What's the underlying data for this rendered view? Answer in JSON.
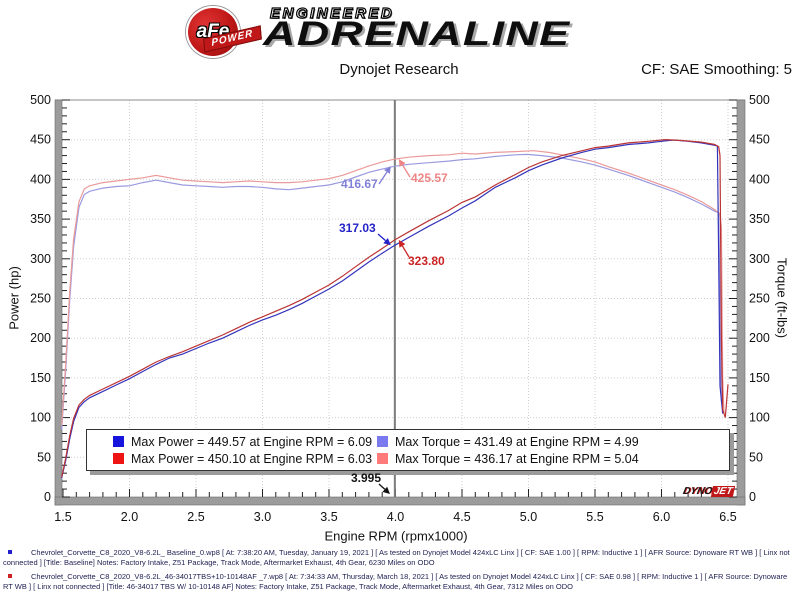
{
  "header": {
    "logo": {
      "afe": "aFe",
      "power": "POWER",
      "engineered": "ENGINEERED",
      "adrenaline": "ADRENALINE"
    },
    "title": "Dynojet Research",
    "cf_smoothing": "CF: SAE Smoothing: 5"
  },
  "watermark": {
    "dyno": "DYNO",
    "jet": "JET"
  },
  "chart_data": {
    "type": "line",
    "xlabel": "Engine RPM (rpmx1000)",
    "ylabel_left": "Power (hp)",
    "ylabel_right": "Torque (ft-lbs)",
    "xlim": [
      1.5,
      6.5
    ],
    "ylim": [
      0,
      500
    ],
    "x_tick_labels": [
      "1.5",
      "2.0",
      "2.5",
      "3.0",
      "3.5",
      "4.0",
      "4.5",
      "5.0",
      "5.5",
      "6.0",
      "6.5"
    ],
    "y_tick_labels": [
      "0",
      "50",
      "100",
      "150",
      "200",
      "250",
      "300",
      "350",
      "400",
      "450",
      "500"
    ],
    "grid": "dotted",
    "legend_position": "bottom-inside",
    "cursor_rpm": 3.995,
    "series": [
      {
        "name": "torque-baseline",
        "color": "#9a9ae0",
        "points": [
          [
            1.49,
            85
          ],
          [
            1.52,
            160
          ],
          [
            1.55,
            248
          ],
          [
            1.58,
            315
          ],
          [
            1.62,
            365
          ],
          [
            1.66,
            381
          ],
          [
            1.7,
            385
          ],
          [
            1.8,
            389
          ],
          [
            1.9,
            391
          ],
          [
            2.0,
            392
          ],
          [
            2.1,
            396
          ],
          [
            2.2,
            399
          ],
          [
            2.3,
            396
          ],
          [
            2.4,
            393
          ],
          [
            2.5,
            392
          ],
          [
            2.6,
            391
          ],
          [
            2.7,
            390
          ],
          [
            2.8,
            391
          ],
          [
            2.9,
            391
          ],
          [
            3.0,
            390
          ],
          [
            3.1,
            388
          ],
          [
            3.2,
            387
          ],
          [
            3.3,
            389
          ],
          [
            3.4,
            391
          ],
          [
            3.5,
            393
          ],
          [
            3.6,
            397
          ],
          [
            3.7,
            403
          ],
          [
            3.8,
            409
          ],
          [
            3.9,
            413
          ],
          [
            3.995,
            416.67
          ],
          [
            4.1,
            419
          ],
          [
            4.25,
            421
          ],
          [
            4.4,
            423
          ],
          [
            4.5,
            425
          ],
          [
            4.6,
            426
          ],
          [
            4.75,
            429
          ],
          [
            4.9,
            431
          ],
          [
            4.99,
            431.49
          ],
          [
            5.1,
            430
          ],
          [
            5.25,
            427
          ],
          [
            5.4,
            422
          ],
          [
            5.5,
            418
          ],
          [
            5.6,
            413
          ],
          [
            5.75,
            405
          ],
          [
            5.9,
            396
          ],
          [
            6.0,
            390
          ],
          [
            6.1,
            384
          ],
          [
            6.2,
            377
          ],
          [
            6.3,
            369
          ],
          [
            6.4,
            360
          ],
          [
            6.43,
            358
          ],
          [
            6.44,
            250
          ],
          [
            6.45,
            120
          ]
        ]
      },
      {
        "name": "torque-tuned",
        "color": "#eb9a9a",
        "points": [
          [
            1.49,
            90
          ],
          [
            1.52,
            168
          ],
          [
            1.55,
            258
          ],
          [
            1.58,
            325
          ],
          [
            1.62,
            372
          ],
          [
            1.66,
            388
          ],
          [
            1.7,
            392
          ],
          [
            1.8,
            396
          ],
          [
            1.9,
            398
          ],
          [
            2.0,
            400
          ],
          [
            2.1,
            402
          ],
          [
            2.2,
            405
          ],
          [
            2.3,
            402
          ],
          [
            2.4,
            399
          ],
          [
            2.5,
            398
          ],
          [
            2.6,
            397
          ],
          [
            2.7,
            396
          ],
          [
            2.8,
            397
          ],
          [
            2.9,
            398
          ],
          [
            3.0,
            397
          ],
          [
            3.1,
            396
          ],
          [
            3.2,
            396
          ],
          [
            3.3,
            397
          ],
          [
            3.4,
            399
          ],
          [
            3.5,
            401
          ],
          [
            3.6,
            405
          ],
          [
            3.7,
            411
          ],
          [
            3.8,
            417
          ],
          [
            3.9,
            422
          ],
          [
            3.995,
            425.57
          ],
          [
            4.1,
            428
          ],
          [
            4.25,
            430
          ],
          [
            4.4,
            431
          ],
          [
            4.5,
            433
          ],
          [
            4.6,
            432
          ],
          [
            4.75,
            434
          ],
          [
            4.9,
            435
          ],
          [
            5.04,
            436.17
          ],
          [
            5.15,
            434
          ],
          [
            5.25,
            431
          ],
          [
            5.4,
            426
          ],
          [
            5.5,
            422
          ],
          [
            5.6,
            416
          ],
          [
            5.75,
            408
          ],
          [
            5.9,
            399
          ],
          [
            6.0,
            393
          ],
          [
            6.1,
            387
          ],
          [
            6.2,
            380
          ],
          [
            6.3,
            372
          ],
          [
            6.4,
            362
          ],
          [
            6.44,
            356
          ],
          [
            6.45,
            340
          ],
          [
            6.46,
            150
          ],
          [
            6.47,
            105
          ]
        ]
      },
      {
        "name": "power-baseline",
        "color": "#3434bb",
        "points": [
          [
            1.49,
            24
          ],
          [
            1.52,
            46
          ],
          [
            1.55,
            73
          ],
          [
            1.58,
            95
          ],
          [
            1.62,
            113
          ],
          [
            1.66,
            120
          ],
          [
            1.7,
            125
          ],
          [
            1.8,
            133
          ],
          [
            1.9,
            141
          ],
          [
            2.0,
            149
          ],
          [
            2.1,
            158
          ],
          [
            2.2,
            167
          ],
          [
            2.3,
            175
          ],
          [
            2.4,
            180
          ],
          [
            2.5,
            187
          ],
          [
            2.6,
            194
          ],
          [
            2.7,
            200
          ],
          [
            2.8,
            208
          ],
          [
            2.9,
            216
          ],
          [
            3.0,
            223
          ],
          [
            3.1,
            229
          ],
          [
            3.2,
            236
          ],
          [
            3.3,
            244
          ],
          [
            3.4,
            253
          ],
          [
            3.5,
            262
          ],
          [
            3.6,
            272
          ],
          [
            3.7,
            284
          ],
          [
            3.8,
            296
          ],
          [
            3.9,
            307
          ],
          [
            3.995,
            317.03
          ],
          [
            4.1,
            327
          ],
          [
            4.25,
            341
          ],
          [
            4.4,
            354
          ],
          [
            4.5,
            364
          ],
          [
            4.6,
            373
          ],
          [
            4.75,
            390
          ],
          [
            4.9,
            402
          ],
          [
            5.0,
            411
          ],
          [
            5.1,
            418
          ],
          [
            5.25,
            427
          ],
          [
            5.4,
            434
          ],
          [
            5.5,
            438
          ],
          [
            5.6,
            440
          ],
          [
            5.75,
            444
          ],
          [
            5.9,
            446
          ],
          [
            6.0,
            448
          ],
          [
            6.09,
            449.57
          ],
          [
            6.2,
            448
          ],
          [
            6.3,
            446
          ],
          [
            6.4,
            443
          ],
          [
            6.42,
            442
          ],
          [
            6.43,
            300
          ],
          [
            6.44,
            140
          ],
          [
            6.46,
            105
          ]
        ]
      },
      {
        "name": "power-tuned",
        "color": "#bb3434",
        "points": [
          [
            1.49,
            25
          ],
          [
            1.52,
            49
          ],
          [
            1.55,
            77
          ],
          [
            1.58,
            99
          ],
          [
            1.62,
            116
          ],
          [
            1.66,
            123
          ],
          [
            1.7,
            128
          ],
          [
            1.8,
            136
          ],
          [
            1.9,
            144
          ],
          [
            2.0,
            152
          ],
          [
            2.1,
            161
          ],
          [
            2.2,
            170
          ],
          [
            2.3,
            177
          ],
          [
            2.4,
            183
          ],
          [
            2.5,
            190
          ],
          [
            2.6,
            197
          ],
          [
            2.7,
            204
          ],
          [
            2.8,
            212
          ],
          [
            2.9,
            220
          ],
          [
            3.0,
            227
          ],
          [
            3.1,
            234
          ],
          [
            3.2,
            241
          ],
          [
            3.3,
            249
          ],
          [
            3.4,
            258
          ],
          [
            3.5,
            267
          ],
          [
            3.6,
            278
          ],
          [
            3.7,
            290
          ],
          [
            3.8,
            302
          ],
          [
            3.9,
            313
          ],
          [
            3.995,
            323.8
          ],
          [
            4.1,
            334
          ],
          [
            4.25,
            348
          ],
          [
            4.4,
            361
          ],
          [
            4.5,
            371
          ],
          [
            4.6,
            378
          ],
          [
            4.75,
            393
          ],
          [
            4.9,
            406
          ],
          [
            5.0,
            415
          ],
          [
            5.1,
            422
          ],
          [
            5.25,
            430
          ],
          [
            5.4,
            436
          ],
          [
            5.5,
            440
          ],
          [
            5.6,
            442
          ],
          [
            5.75,
            446
          ],
          [
            5.9,
            448
          ],
          [
            6.03,
            450.1
          ],
          [
            6.15,
            449
          ],
          [
            6.3,
            447
          ],
          [
            6.4,
            444
          ],
          [
            6.43,
            441
          ],
          [
            6.44,
            430
          ],
          [
            6.45,
            200
          ],
          [
            6.46,
            110
          ],
          [
            6.48,
            100
          ],
          [
            6.5,
            142
          ]
        ]
      }
    ],
    "annotations": [
      {
        "text": "416.67",
        "value": 416.67,
        "color": "#8080d8",
        "label_pos": [
          341,
          177
        ],
        "tail": [
          379,
          184
        ],
        "tip_dx": -4
      },
      {
        "text": "425.57",
        "value": 425.57,
        "color": "#ee8484",
        "label_pos": [
          411,
          171
        ],
        "tail": [
          410,
          177
        ],
        "tip_dx": 4
      },
      {
        "text": "317.03",
        "value": 317.03,
        "color": "#2424c8",
        "label_pos": [
          339,
          221
        ],
        "tail": [
          378,
          234
        ],
        "tip_dx": -4
      },
      {
        "text": "323.80",
        "value": 323.8,
        "color": "#cc2424",
        "label_pos": [
          408,
          254
        ],
        "tail": [
          409,
          257
        ],
        "tip_dx": 4
      },
      {
        "text": "3.995",
        "color": "#111111",
        "label_pos": [
          351,
          471
        ],
        "tail": [
          379,
          484
        ],
        "target": [
          390,
          494
        ]
      }
    ]
  },
  "legend": {
    "items": [
      {
        "color": "#1414dd",
        "text": "Max Power = 449.57 at Engine RPM = 6.09"
      },
      {
        "color": "#7a7aee",
        "text": "Max Torque = 431.49 at Engine RPM = 4.99"
      },
      {
        "color": "#ee1414",
        "text": "Max Power = 450.10 at Engine RPM = 6.03"
      },
      {
        "color": "#ff7a7a",
        "text": "Max Torque = 436.17 at Engine RPM = 5.04"
      }
    ]
  },
  "footer": {
    "entries": [
      {
        "bullet_color": "#2222cc",
        "text": "Chevrolet_Corvette_C8_2020_V8-6.2L_ Baseline_0.wp8 [ At: 7:38:20 AM, Tuesday, January 19, 2021 ] [ As tested on Dynojet Model 424xLC Linx ] [ CF: SAE 1.00 ] [ RPM: Inductive 1 ] [ AFR Source: Dynoware RT WB ] [ Linx not connected ] [Title: Baseline]  Notes: Factory Intake, Z51 Package, Track Mode, Aftermarket Exhaust, 4th Gear, 6230 Miles on ODO"
      },
      {
        "bullet_color": "#cc2222",
        "text": "Chevrolet_Corvette_C8_2020_V8-6.2L_46-34017TBS+10-10148AF _7.wp8 [ At: 7:34:33 AM, Thursday, March 18, 2021 ] [ As tested on Dynojet Model 424xLC Linx ] [ CF: SAE 0.98 ] [ RPM: Inductive 1 ] [ AFR Source: Dynoware RT WB ] [ Linx not connected ] [Title: 46-34017 TBS W/ 10-10148 AF]  Notes: Factory Intake, Z51 Package, Track Mode, Aftermarket Exhaust, 4th Gear, 7312 Miles on ODO"
      }
    ]
  }
}
